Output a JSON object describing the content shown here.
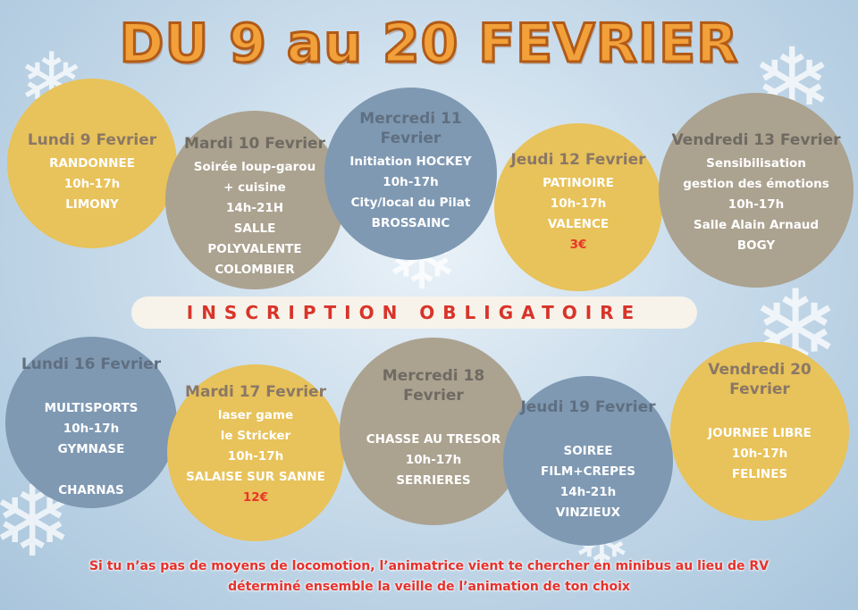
{
  "title": "DU 9 au 20 FEVRIER",
  "banner": "INSCRIPTION OBLIGATOIRE",
  "days": [
    {
      "day": [
        "Lundi 9 Fevrier"
      ],
      "lines": [
        "RANDONNEE",
        "10h-17h",
        "LIMONY"
      ]
    },
    {
      "day": [
        "Mardi 10 Fevrier"
      ],
      "lines": [
        "Soirée loup-garou",
        "+ cuisine",
        "14h-21H",
        "SALLE",
        "POLYVALENTE",
        "COLOMBIER"
      ]
    },
    {
      "day": [
        "Mercredi 11",
        "Fevrier"
      ],
      "lines": [
        "Initiation HOCKEY",
        "10h-17h",
        "City/local du Pilat",
        "BROSSAINC"
      ]
    },
    {
      "day": [
        "Jeudi 12 Fevrier"
      ],
      "lines": [
        "PATINOIRE",
        "10h-17h",
        "VALENCE"
      ],
      "price": "3€"
    },
    {
      "day": [
        "Vendredi 13  Fevrier"
      ],
      "lines": [
        "Sensibilisation",
        "gestion des émotions",
        "10h-17h",
        "Salle Alain Arnaud",
        "BOGY"
      ]
    },
    {
      "day": [
        "Lundi 16 Fevrier"
      ],
      "lines": [
        "",
        "MULTISPORTS",
        "10h-17h",
        "GYMNASE",
        "",
        "CHARNAS"
      ]
    },
    {
      "day": [
        "Mardi 17 Fevrier"
      ],
      "lines": [
        "laser game",
        "le Stricker",
        "10h-17h",
        "SALAISE SUR SANNE"
      ],
      "price": "12€"
    },
    {
      "day": [
        "Mercredi 18",
        "Fevrier"
      ],
      "lines": [
        "",
        "CHASSE AU TRESOR",
        "10h-17h",
        "SERRIERES"
      ]
    },
    {
      "day": [
        "Jeudi 19 Fevrier"
      ],
      "lines": [
        "",
        "SOIREE",
        "FILM+CREPES",
        "14h-21h",
        "VINZIEUX"
      ]
    },
    {
      "day": [
        "Vendredi 20",
        "Fevrier"
      ],
      "lines": [
        "",
        "JOURNEE LIBRE",
        "10h-17h",
        "FELINES"
      ]
    }
  ],
  "footer": [
    "Si tu n’as pas de moyens de locomotion, l’animatrice vient te chercher en minibus au lieu de RV",
    "déterminé ensemble la veille de l’animation de ton choix"
  ]
}
